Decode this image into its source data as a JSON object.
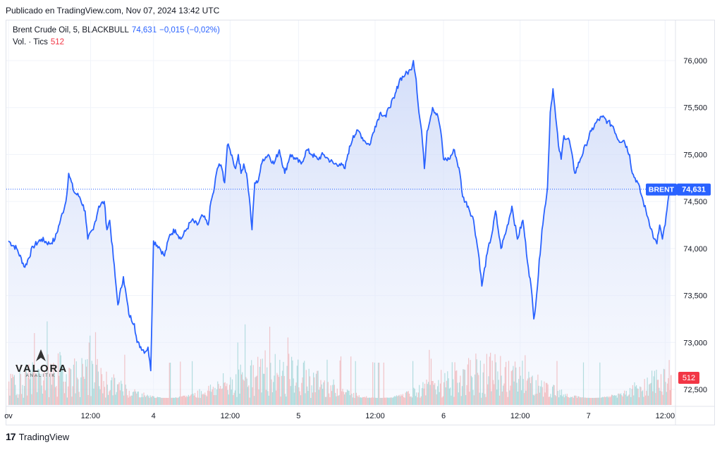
{
  "header": {
    "published": "Publicado en TradingView.com, Nov 07, 2024 13:42 UTC"
  },
  "legend": {
    "symbol": "Brent Crude Oil, 5, BLACKBULL",
    "price": "74,631",
    "change": "−0,015 (−0,02%)",
    "vol_label": "Vol. · Tics",
    "vol_value": "512"
  },
  "footer": {
    "brand": "TradingView"
  },
  "watermark": {
    "name": "VALORA",
    "sub": "ANALITIK"
  },
  "price_tag": {
    "label": "BRENT",
    "value": "74,631",
    "volume": "512"
  },
  "colors": {
    "line": "#2962ff",
    "fill": "#dbe4fb",
    "up": "#26a69a",
    "down": "#ef5350",
    "tag": "#2962ff",
    "vol_tag": "#f23645"
  },
  "chart_data": {
    "type": "area",
    "y_ticks": [
      "76,000",
      "75,500",
      "75,000",
      "74,500",
      "74,000",
      "73,500",
      "73,000",
      "72,500"
    ],
    "y_tick_values": [
      76000,
      75500,
      75000,
      74500,
      74000,
      73500,
      73000,
      72500
    ],
    "x_ticks": [
      "ov",
      "12:00",
      "4",
      "12:00",
      "5",
      "12:00",
      "6",
      "12:00",
      "7",
      "12:00"
    ],
    "x_tick_index": [
      0,
      30,
      53,
      81,
      106,
      134,
      159,
      187,
      212,
      240
    ],
    "ylim": [
      72300,
      76300
    ],
    "grid": true,
    "last_price": 74631,
    "anchors": [
      [
        0,
        74080
      ],
      [
        3,
        74000
      ],
      [
        6,
        73800
      ],
      [
        9,
        74020
      ],
      [
        12,
        74100
      ],
      [
        15,
        74050
      ],
      [
        17,
        74100
      ],
      [
        19,
        74300
      ],
      [
        21,
        74500
      ],
      [
        22,
        74800
      ],
      [
        24,
        74600
      ],
      [
        26,
        74550
      ],
      [
        28,
        74400
      ],
      [
        29,
        74100
      ],
      [
        31,
        74200
      ],
      [
        33,
        74450
      ],
      [
        35,
        74500
      ],
      [
        36,
        74200
      ],
      [
        37,
        74300
      ],
      [
        39,
        73700
      ],
      [
        40,
        73400
      ],
      [
        42,
        73700
      ],
      [
        44,
        73300
      ],
      [
        46,
        73200
      ],
      [
        47,
        73000
      ],
      [
        50,
        72900
      ],
      [
        51,
        72950
      ],
      [
        52,
        72700
      ],
      [
        53,
        74080
      ],
      [
        55,
        74020
      ],
      [
        57,
        73920
      ],
      [
        59,
        74150
      ],
      [
        61,
        74200
      ],
      [
        63,
        74100
      ],
      [
        65,
        74200
      ],
      [
        67,
        74300
      ],
      [
        69,
        74250
      ],
      [
        71,
        74350
      ],
      [
        73,
        74250
      ],
      [
        74,
        74500
      ],
      [
        75,
        74600
      ],
      [
        76,
        74800
      ],
      [
        77,
        74900
      ],
      [
        78,
        74850
      ],
      [
        79,
        74700
      ],
      [
        80,
        75100
      ],
      [
        81,
        75050
      ],
      [
        82,
        74950
      ],
      [
        83,
        74850
      ],
      [
        84,
        75000
      ],
      [
        85,
        74800
      ],
      [
        86,
        74900
      ],
      [
        87,
        74800
      ],
      [
        88,
        74550
      ],
      [
        89,
        74200
      ],
      [
        90,
        74700
      ],
      [
        91,
        74700
      ],
      [
        93,
        74950
      ],
      [
        95,
        75000
      ],
      [
        97,
        74900
      ],
      [
        99,
        75050
      ],
      [
        101,
        74800
      ],
      [
        103,
        75000
      ],
      [
        105,
        74950
      ],
      [
        107,
        74900
      ],
      [
        109,
        75050
      ],
      [
        111,
        75000
      ],
      [
        113,
        74950
      ],
      [
        115,
        75000
      ],
      [
        117,
        74950
      ],
      [
        119,
        74900
      ],
      [
        121,
        74900
      ],
      [
        123,
        74850
      ],
      [
        124,
        75000
      ],
      [
        126,
        75200
      ],
      [
        128,
        75250
      ],
      [
        130,
        75150
      ],
      [
        132,
        75100
      ],
      [
        134,
        75300
      ],
      [
        136,
        75450
      ],
      [
        138,
        75400
      ],
      [
        139,
        75500
      ],
      [
        141,
        75600
      ],
      [
        143,
        75800
      ],
      [
        145,
        75850
      ],
      [
        147,
        75900
      ],
      [
        148,
        76000
      ],
      [
        149,
        75800
      ],
      [
        150,
        75450
      ],
      [
        151,
        75250
      ],
      [
        152,
        74850
      ],
      [
        153,
        75250
      ],
      [
        155,
        75500
      ],
      [
        157,
        75400
      ],
      [
        158,
        75250
      ],
      [
        159,
        74950
      ],
      [
        161,
        74950
      ],
      [
        163,
        75050
      ],
      [
        165,
        74800
      ],
      [
        166,
        74550
      ],
      [
        168,
        74450
      ],
      [
        170,
        74300
      ],
      [
        172,
        73900
      ],
      [
        173,
        73600
      ],
      [
        175,
        73950
      ],
      [
        177,
        74200
      ],
      [
        178,
        74400
      ],
      [
        179,
        74200
      ],
      [
        180,
        74000
      ],
      [
        182,
        74200
      ],
      [
        184,
        74450
      ],
      [
        186,
        74100
      ],
      [
        188,
        74300
      ],
      [
        190,
        73800
      ],
      [
        191,
        73600
      ],
      [
        192,
        73250
      ],
      [
        193,
        73500
      ],
      [
        195,
        74200
      ],
      [
        197,
        74650
      ],
      [
        198,
        75450
      ],
      [
        199,
        75700
      ],
      [
        200,
        75400
      ],
      [
        201,
        75100
      ],
      [
        202,
        74950
      ],
      [
        203,
        75200
      ],
      [
        205,
        75150
      ],
      [
        207,
        74800
      ],
      [
        209,
        74950
      ],
      [
        211,
        75100
      ],
      [
        213,
        75250
      ],
      [
        215,
        75350
      ],
      [
        217,
        75400
      ],
      [
        219,
        75350
      ],
      [
        221,
        75300
      ],
      [
        223,
        75150
      ],
      [
        225,
        75150
      ],
      [
        227,
        75000
      ],
      [
        228,
        74800
      ],
      [
        230,
        74700
      ],
      [
        232,
        74500
      ],
      [
        234,
        74300
      ],
      [
        236,
        74100
      ],
      [
        237,
        74050
      ],
      [
        238,
        74250
      ],
      [
        239,
        74100
      ],
      [
        240,
        74250
      ],
      [
        241,
        74500
      ],
      [
        242,
        74631
      ]
    ],
    "volume_up": true
  }
}
